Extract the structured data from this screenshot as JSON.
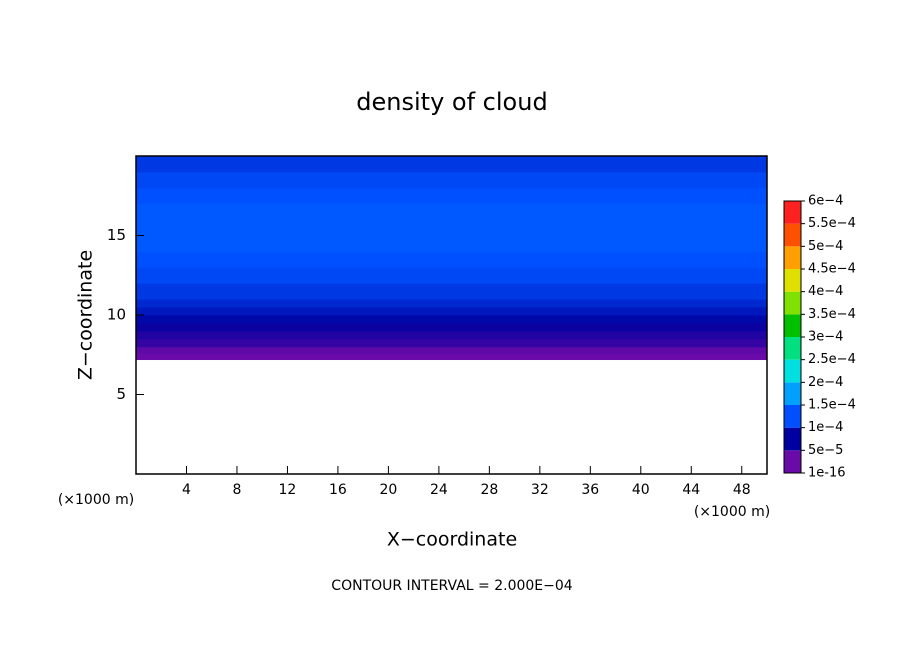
{
  "chart_data": {
    "type": "contour",
    "title": "density of cloud",
    "x_label": "X−coordinate",
    "y_label": "Z−coordinate",
    "x_unit": "(×1000 m)",
    "y_unit": "(×1000 m)",
    "note": "CONTOUR INTERVAL = 2.000E−04",
    "xlim": [
      0,
      50
    ],
    "ylim": [
      0,
      20
    ],
    "xticks": [
      4,
      8,
      12,
      16,
      20,
      24,
      28,
      32,
      36,
      40,
      44,
      48
    ],
    "yticks": [
      5,
      10,
      15
    ],
    "profile": {
      "z": [
        7.2,
        7.6,
        8.0,
        8.5,
        9.0,
        9.5,
        10.0,
        10.5,
        11,
        12,
        13,
        14,
        15,
        16,
        17,
        18,
        19
      ],
      "values": [
        1e-06,
        3e-05,
        5e-05,
        6e-05,
        7e-05,
        8e-05,
        9e-05,
        0.0001,
        0.00011,
        0.00012,
        0.000125,
        0.00013,
        0.00013,
        0.00013,
        0.000125,
        0.00012,
        0.00011
      ]
    },
    "colorbar": {
      "levels": [
        1e-16,
        {
          "value": 5e-05,
          "label": "5e−5"
        },
        {
          "value": 0.0001,
          "label": "1e−4"
        },
        {
          "value": 0.00015,
          "label": "1.5e−4"
        },
        {
          "value": 0.0002,
          "label": "2e−4"
        },
        {
          "value": 0.00025,
          "label": "2.5e−4"
        },
        {
          "value": 0.0003,
          "label": "3e−4"
        },
        {
          "value": 0.00035,
          "label": "3.5e−4"
        },
        {
          "value": 0.0004,
          "label": "4e−4"
        },
        {
          "value": 0.00045,
          "label": "4.5e−4"
        },
        {
          "value": 0.0005,
          "label": "5e−4"
        },
        {
          "value": 0.00055,
          "label": "5.5e−4"
        },
        {
          "value": 0.0006,
          "label": "6e−4"
        }
      ],
      "colors": [
        "#6a0aa8",
        "#0000a0",
        "#0050ff",
        "#00a0ff",
        "#00e0e0",
        "#00e080",
        "#00c000",
        "#80e000",
        "#e0e000",
        "#ffa000",
        "#ff5000",
        "#ff2020"
      ]
    }
  }
}
